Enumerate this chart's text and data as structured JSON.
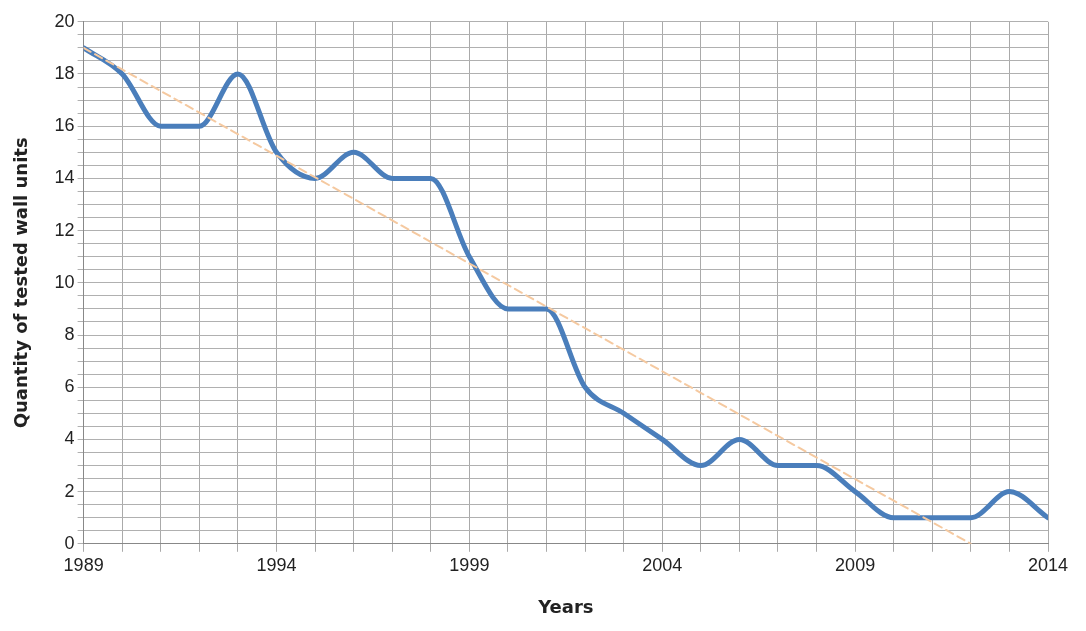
{
  "chart_data": {
    "type": "line",
    "xlabel": "Years",
    "ylabel": "Quantity of tested wall units",
    "x": [
      1989,
      1990,
      1991,
      1992,
      1993,
      1994,
      1995,
      1996,
      1997,
      1998,
      1999,
      2000,
      2001,
      2002,
      2003,
      2004,
      2005,
      2006,
      2007,
      2008,
      2009,
      2010,
      2011,
      2012,
      2013,
      2014
    ],
    "series": [
      {
        "color": "#4a7ebb",
        "values": [
          19,
          18,
          16,
          16,
          18,
          15,
          14,
          15,
          14,
          14,
          11,
          9,
          9,
          6,
          5,
          4,
          3,
          4,
          3,
          3,
          2,
          1,
          1,
          1,
          2,
          1
        ]
      },
      {
        "type": "line",
        "color": "#f5c9a0",
        "line_style": "dashed",
        "x": [
          1989,
          2012
        ],
        "values": [
          19,
          0
        ]
      }
    ],
    "xlim": [
      1989,
      2014
    ],
    "xticks": [
      1989,
      {
        "value": 1990,
        "label": null
      },
      {
        "value": 1991,
        "label": null
      },
      {
        "value": 1992,
        "label": null
      },
      {
        "value": 1993,
        "label": null
      },
      1994,
      {
        "value": 1995,
        "label": null
      },
      {
        "value": 1996,
        "label": null
      },
      {
        "value": 1997,
        "label": null
      },
      {
        "value": 1998,
        "label": null
      },
      1999,
      {
        "value": 2000,
        "label": null
      },
      {
        "value": 2001,
        "label": null
      },
      {
        "value": 2002,
        "label": null
      },
      {
        "value": 2003,
        "label": null
      },
      2004,
      {
        "value": 2005,
        "label": null
      },
      {
        "value": 2006,
        "label": null
      },
      {
        "value": 2007,
        "label": null
      },
      {
        "value": 2008,
        "label": null
      },
      2009,
      {
        "value": 2010,
        "label": null
      },
      {
        "value": 2011,
        "label": null
      },
      {
        "value": 2012,
        "label": null
      },
      {
        "value": 2013,
        "label": null
      },
      2014
    ],
    "ylim": [
      0,
      20
    ],
    "yticks": [
      0,
      {
        "value": 0.5,
        "label": null
      },
      {
        "value": 1,
        "label": null
      },
      {
        "value": 1.5,
        "label": null
      },
      2,
      {
        "value": 2.5,
        "label": null
      },
      {
        "value": 3,
        "label": null
      },
      {
        "value": 3.5,
        "label": null
      },
      4,
      {
        "value": 4.5,
        "label": null
      },
      {
        "value": 5,
        "label": null
      },
      {
        "value": 5.5,
        "label": null
      },
      6,
      {
        "value": 6.5,
        "label": null
      },
      {
        "value": 7,
        "label": null
      },
      {
        "value": 7.5,
        "label": null
      },
      8,
      {
        "value": 8.5,
        "label": null
      },
      {
        "value": 9,
        "label": null
      },
      {
        "value": 9.5,
        "label": null
      },
      10,
      {
        "value": 10.5,
        "label": null
      },
      {
        "value": 11,
        "label": null
      },
      {
        "value": 11.5,
        "label": null
      },
      12,
      {
        "value": 12.5,
        "label": null
      },
      {
        "value": 13,
        "label": null
      },
      {
        "value": 13.5,
        "label": null
      },
      14,
      {
        "value": 14.5,
        "label": null
      },
      {
        "value": 15,
        "label": null
      },
      {
        "value": 15.5,
        "label": null
      },
      16,
      {
        "value": 16.5,
        "label": null
      },
      {
        "value": 17,
        "label": null
      },
      {
        "value": 17.5,
        "label": null
      },
      18,
      {
        "value": 18.5,
        "label": null
      },
      {
        "value": 19,
        "label": null
      },
      {
        "value": 19.5,
        "label": null
      },
      20
    ],
    "grid": true,
    "legend": false,
    "marker": "none",
    "line_style": "solid"
  }
}
